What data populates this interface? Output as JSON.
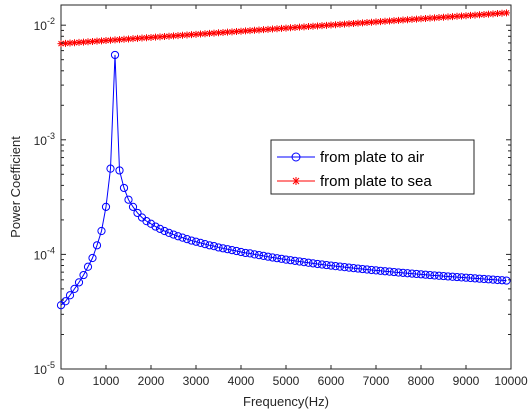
{
  "chart_data": {
    "type": "line",
    "title": "",
    "xlabel": "Frequency(Hz)",
    "ylabel": "Power Coefficient",
    "xlim": [
      0,
      10000
    ],
    "ylim": [
      1e-05,
      0.015
    ],
    "yscale": "log",
    "grid": false,
    "legend_position": "center-right",
    "x_ticks": [
      "0",
      "1000",
      "2000",
      "3000",
      "4000",
      "5000",
      "6000",
      "7000",
      "8000",
      "9000",
      "10000"
    ],
    "y_ticks": [
      {
        "base": "10",
        "exp": "-5"
      },
      {
        "base": "10",
        "exp": "-4"
      },
      {
        "base": "10",
        "exp": "-3"
      },
      {
        "base": "10",
        "exp": "-2"
      }
    ],
    "series": [
      {
        "name": "from plate to air",
        "color": "#0000ff",
        "marker": "circle",
        "points": [
          [
            0,
            3.6e-05
          ],
          [
            100,
            3.9e-05
          ],
          [
            200,
            4.4e-05
          ],
          [
            300,
            5e-05
          ],
          [
            400,
            5.7e-05
          ],
          [
            500,
            6.6e-05
          ],
          [
            600,
            7.8e-05
          ],
          [
            700,
            9.3e-05
          ],
          [
            800,
            0.00012
          ],
          [
            900,
            0.00016
          ],
          [
            1000,
            0.00026
          ],
          [
            1100,
            0.00056
          ],
          [
            1200,
            0.0055
          ],
          [
            1300,
            0.00054
          ],
          [
            1400,
            0.00038
          ],
          [
            1500,
            0.0003
          ],
          [
            1600,
            0.00026
          ],
          [
            1700,
            0.00023
          ],
          [
            1800,
            0.00021
          ],
          [
            1900,
            0.000195
          ],
          [
            2000,
            0.000185
          ],
          [
            2100,
            0.000175
          ],
          [
            2200,
            0.000167
          ],
          [
            2300,
            0.00016
          ],
          [
            2400,
            0.000154
          ],
          [
            2500,
            0.000149
          ],
          [
            2600,
            0.000144
          ],
          [
            2700,
            0.00014
          ],
          [
            2800,
            0.000136
          ],
          [
            2900,
            0.000132
          ],
          [
            3000,
            0.000129
          ],
          [
            3100,
            0.000126
          ],
          [
            3200,
            0.000123
          ],
          [
            3300,
            0.00012
          ],
          [
            3400,
            0.000118
          ],
          [
            3500,
            0.000115
          ],
          [
            3600,
            0.000113
          ],
          [
            3700,
            0.000111
          ],
          [
            3800,
            0.000109
          ],
          [
            3900,
            0.000107
          ],
          [
            4000,
            0.000105
          ],
          [
            4100,
            0.000103
          ],
          [
            4200,
            0.000102
          ],
          [
            4300,
            0.0001
          ],
          [
            4400,
            9.85e-05
          ],
          [
            4500,
            9.7e-05
          ],
          [
            4600,
            9.55e-05
          ],
          [
            4700,
            9.4e-05
          ],
          [
            4800,
            9.27e-05
          ],
          [
            4900,
            9.15e-05
          ],
          [
            5000,
            9e-05
          ],
          [
            5100,
            8.9e-05
          ],
          [
            5200,
            8.78e-05
          ],
          [
            5300,
            8.67e-05
          ],
          [
            5400,
            8.56e-05
          ],
          [
            5500,
            8.45e-05
          ],
          [
            5600,
            8.35e-05
          ],
          [
            5700,
            8.25e-05
          ],
          [
            5800,
            8.16e-05
          ],
          [
            5900,
            8.07e-05
          ],
          [
            6000,
            7.98e-05
          ],
          [
            6100,
            7.9e-05
          ],
          [
            6200,
            7.82e-05
          ],
          [
            6300,
            7.74e-05
          ],
          [
            6400,
            7.66e-05
          ],
          [
            6500,
            7.59e-05
          ],
          [
            6600,
            7.52e-05
          ],
          [
            6700,
            7.45e-05
          ],
          [
            6800,
            7.38e-05
          ],
          [
            6900,
            7.31e-05
          ],
          [
            7000,
            7.25e-05
          ],
          [
            7100,
            7.19e-05
          ],
          [
            7200,
            7.13e-05
          ],
          [
            7300,
            7.07e-05
          ],
          [
            7400,
            7.01e-05
          ],
          [
            7500,
            6.95e-05
          ],
          [
            7600,
            6.9e-05
          ],
          [
            7700,
            6.85e-05
          ],
          [
            7800,
            6.8e-05
          ],
          [
            7900,
            6.75e-05
          ],
          [
            8000,
            6.7e-05
          ],
          [
            8100,
            6.65e-05
          ],
          [
            8200,
            6.6e-05
          ],
          [
            8300,
            6.55e-05
          ],
          [
            8400,
            6.51e-05
          ],
          [
            8500,
            6.47e-05
          ],
          [
            8600,
            6.42e-05
          ],
          [
            8700,
            6.38e-05
          ],
          [
            8800,
            6.34e-05
          ],
          [
            8900,
            6.3e-05
          ],
          [
            9000,
            6.26e-05
          ],
          [
            9100,
            6.22e-05
          ],
          [
            9200,
            6.18e-05
          ],
          [
            9300,
            6.14e-05
          ],
          [
            9400,
            6.1e-05
          ],
          [
            9500,
            6.06e-05
          ],
          [
            9600,
            6.02e-05
          ],
          [
            9700,
            5.98e-05
          ],
          [
            9800,
            5.95e-05
          ],
          [
            9900,
            5.91e-05
          ]
        ]
      },
      {
        "name": "from plate to sea",
        "color": "#ff0000",
        "marker": "asterisk",
        "x_start": 0,
        "x_end": 9900,
        "x_step": 100,
        "y_start": 0.0069,
        "y_end": 0.0128
      }
    ]
  }
}
